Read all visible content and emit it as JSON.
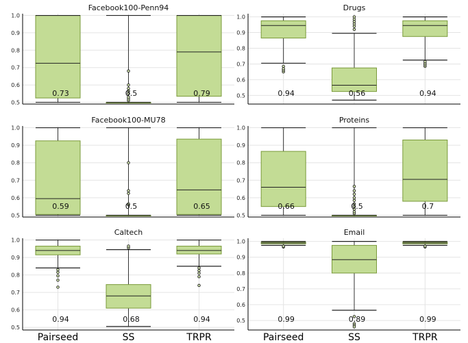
{
  "figure": {
    "box_fill": "#c3dc95",
    "box_stroke": "#7a9a3a",
    "category_labels": [
      "Pairseed",
      "SS",
      "TRPR"
    ]
  },
  "chart_data": [
    {
      "type": "box",
      "title": "Facebook100-Penn94",
      "yticks": [
        "0.5",
        "0.6",
        "0.7",
        "0.8",
        "0.9",
        "1.0"
      ],
      "ylim": [
        0.49,
        1.01
      ],
      "categories": [
        "Pairseed",
        "SS",
        "TRPR"
      ],
      "boxes": [
        {
          "whisker_low": 0.5,
          "q1": 0.525,
          "median": 0.725,
          "q3": 1.0,
          "whisker_high": 1.0,
          "outliers": [],
          "label": "0.73"
        },
        {
          "whisker_low": 0.5,
          "q1": 0.5,
          "median": 0.5,
          "q3": 0.5,
          "whisker_high": 1.0,
          "outliers": [
            0.51,
            0.52,
            0.53,
            0.55,
            0.565,
            0.58,
            0.6,
            0.68
          ],
          "label": "0.5"
        },
        {
          "whisker_low": 0.5,
          "q1": 0.535,
          "median": 0.79,
          "q3": 1.0,
          "whisker_high": 1.0,
          "outliers": [],
          "label": "0.79"
        }
      ]
    },
    {
      "type": "box",
      "title": "Drugs",
      "yticks": [
        "0.5",
        "0.6",
        "0.7",
        "0.8",
        "0.9",
        "1.0"
      ],
      "ylim": [
        0.445,
        1.02
      ],
      "categories": [
        "Pairseed",
        "SS",
        "TRPR"
      ],
      "boxes": [
        {
          "whisker_low": 0.705,
          "q1": 0.865,
          "median": 0.945,
          "q3": 0.975,
          "whisker_high": 1.0,
          "outliers": [
            0.65,
            0.66,
            0.67,
            0.685
          ],
          "label": "0.94"
        },
        {
          "whisker_low": 0.47,
          "q1": 0.525,
          "median": 0.565,
          "q3": 0.675,
          "whisker_high": 0.895,
          "outliers": [
            0.92,
            0.94,
            0.955,
            0.97,
            0.985,
            1.0
          ],
          "label": "0.56"
        },
        {
          "whisker_low": 0.725,
          "q1": 0.875,
          "median": 0.945,
          "q3": 0.975,
          "whisker_high": 1.0,
          "outliers": [
            0.685,
            0.695,
            0.705,
            0.715
          ],
          "label": "0.94"
        }
      ]
    },
    {
      "type": "box",
      "title": "Facebook100-MU78",
      "yticks": [
        "0.5",
        "0.6",
        "0.7",
        "0.8",
        "0.9",
        "1.0"
      ],
      "ylim": [
        0.49,
        1.01
      ],
      "categories": [
        "Pairseed",
        "SS",
        "TRPR"
      ],
      "boxes": [
        {
          "whisker_low": 0.5,
          "q1": 0.505,
          "median": 0.595,
          "q3": 0.925,
          "whisker_high": 1.0,
          "outliers": [],
          "label": "0.59"
        },
        {
          "whisker_low": 0.5,
          "q1": 0.5,
          "median": 0.5,
          "q3": 0.5,
          "whisker_high": 1.0,
          "outliers": [
            0.56,
            0.565,
            0.625,
            0.64,
            0.8
          ],
          "label": "0.5"
        },
        {
          "whisker_low": 0.5,
          "q1": 0.505,
          "median": 0.645,
          "q3": 0.935,
          "whisker_high": 1.0,
          "outliers": [],
          "label": "0.65"
        }
      ]
    },
    {
      "type": "box",
      "title": "Proteins",
      "yticks": [
        "0.5",
        "0.6",
        "0.7",
        "0.8",
        "0.9",
        "1.0"
      ],
      "ylim": [
        0.49,
        1.01
      ],
      "categories": [
        "Pairseed",
        "SS",
        "TRPR"
      ],
      "boxes": [
        {
          "whisker_low": 0.5,
          "q1": 0.55,
          "median": 0.66,
          "q3": 0.865,
          "whisker_high": 1.0,
          "outliers": [],
          "label": "0.66"
        },
        {
          "whisker_low": 0.5,
          "q1": 0.5,
          "median": 0.5,
          "q3": 0.5,
          "whisker_high": 1.0,
          "outliers": [
            0.51,
            0.52,
            0.535,
            0.55,
            0.565,
            0.585,
            0.6,
            0.62,
            0.64,
            0.665
          ],
          "label": "0.5"
        },
        {
          "whisker_low": 0.5,
          "q1": 0.58,
          "median": 0.705,
          "q3": 0.93,
          "whisker_high": 1.0,
          "outliers": [],
          "label": "0.7"
        }
      ]
    },
    {
      "type": "box",
      "title": "Caltech",
      "yticks": [
        "0.5",
        "0.6",
        "0.7",
        "0.8",
        "0.9",
        "1.0"
      ],
      "ylim": [
        0.485,
        1.01
      ],
      "categories": [
        "Pairseed",
        "SS",
        "TRPR"
      ],
      "boxes": [
        {
          "whisker_low": 0.84,
          "q1": 0.915,
          "median": 0.94,
          "q3": 0.965,
          "whisker_high": 1.0,
          "outliers": [
            0.73,
            0.77,
            0.795,
            0.815,
            0.83
          ],
          "label": "0.94"
        },
        {
          "whisker_low": 0.505,
          "q1": 0.61,
          "median": 0.68,
          "q3": 0.745,
          "whisker_high": 0.945,
          "outliers": [
            0.955,
            0.965
          ],
          "label": "0.68"
        },
        {
          "whisker_low": 0.85,
          "q1": 0.92,
          "median": 0.94,
          "q3": 0.965,
          "whisker_high": 1.0,
          "outliers": [
            0.74,
            0.79,
            0.81,
            0.825,
            0.84
          ],
          "label": "0.94"
        }
      ]
    },
    {
      "type": "box",
      "title": "Email",
      "yticks": [
        "0.5",
        "0.6",
        "0.7",
        "0.8",
        "0.9",
        "1.0"
      ],
      "ylim": [
        0.44,
        1.02
      ],
      "categories": [
        "Pairseed",
        "SS",
        "TRPR"
      ],
      "boxes": [
        {
          "whisker_low": 0.975,
          "q1": 0.985,
          "median": 0.99,
          "q3": 0.995,
          "whisker_high": 1.0,
          "outliers": [
            0.965,
            0.97
          ],
          "label": "0.99"
        },
        {
          "whisker_low": 0.565,
          "q1": 0.8,
          "median": 0.885,
          "q3": 0.975,
          "whisker_high": 1.0,
          "outliers": [
            0.525,
            0.48,
            0.47,
            0.46
          ],
          "label": "0.89"
        },
        {
          "whisker_low": 0.975,
          "q1": 0.985,
          "median": 0.99,
          "q3": 0.995,
          "whisker_high": 1.0,
          "outliers": [
            0.965,
            0.97
          ],
          "label": "0.99"
        }
      ]
    }
  ]
}
